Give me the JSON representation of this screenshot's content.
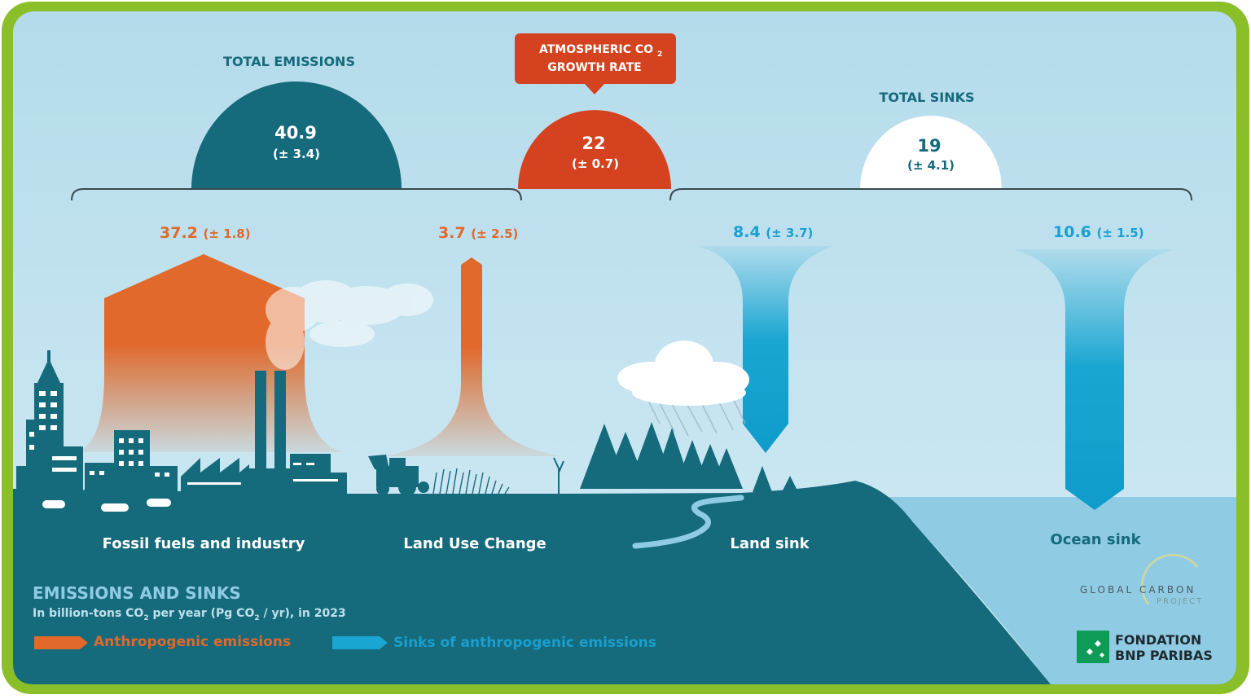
{
  "total_emissions": {
    "title": "TOTAL EMISSIONS",
    "value": "40.9",
    "uncertainty": "(± 3.4)"
  },
  "growth_rate": {
    "title_line1": "ATMOSPHERIC CO",
    "title_sub": "2",
    "title_line2": "GROWTH RATE",
    "value": "22",
    "uncertainty": "(± 0.7)"
  },
  "total_sinks": {
    "title": "TOTAL SINKS",
    "value": "19",
    "uncertainty": "(± 4.1)"
  },
  "flows": {
    "fossil": {
      "value": "37.2",
      "uncertainty": "(± 1.8)",
      "label": "Fossil fuels and industry"
    },
    "land_use": {
      "value": "3.7",
      "uncertainty": "(± 2.5)",
      "label": "Land Use Change"
    },
    "land_sink": {
      "value": "8.4",
      "uncertainty": "(± 3.7)",
      "label": "Land sink"
    },
    "ocean_sink": {
      "value": "10.6",
      "uncertainty": "(± 1.5)",
      "label": "Ocean sink"
    }
  },
  "legend": {
    "title": "EMISSIONS AND SINKS",
    "subtitle_a": "In billion-tons CO",
    "subtitle_sub": "2",
    "subtitle_b": " per year (Pg CO",
    "subtitle_sub2": "2",
    "subtitle_c": " / yr), in 2023",
    "emissions_label": "Anthropogenic emissions",
    "sinks_label": "Sinks of anthropogenic emissions"
  },
  "logos": {
    "gcp_line1": "GLOBAL CARBON",
    "gcp_line2": "PROJECT",
    "bnp_line1": "FONDATION",
    "bnp_line2": "BNP PARIBAS"
  },
  "colors": {
    "frame": "#8bbf2a",
    "sky": "#c6e4f0",
    "ground": "#156a7c",
    "emission": "#e0692b",
    "growth": "#d4421f",
    "sink": "#1aa6d2",
    "ocean": "#8fcbe3"
  }
}
